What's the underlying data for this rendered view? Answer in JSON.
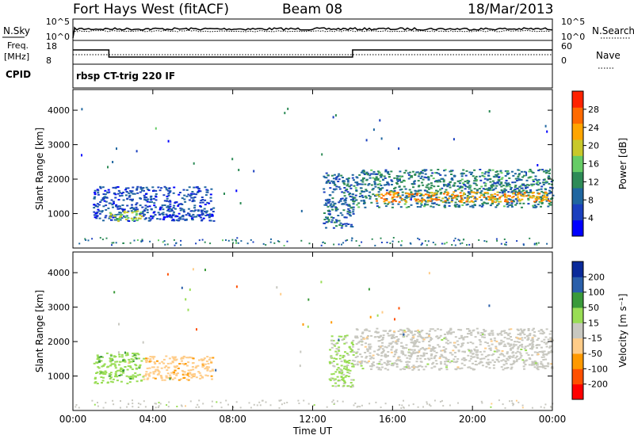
{
  "header": {
    "title": "Fort Hays West (fitACF)",
    "beam": "Beam 08",
    "date": "18/Mar/2013"
  },
  "summary": {
    "nsky_label": "N.Sky",
    "nsearch_label": "N.Search",
    "count_ticks": [
      "10^5",
      "10^0"
    ],
    "freq_label": "Freq.",
    "freq_unit": "[MHz]",
    "freq_ticks": [
      "18",
      "8"
    ],
    "nave_label": "Nave",
    "nave_ticks": [
      "60",
      "0"
    ],
    "cpid_label": "CPID",
    "cpid_value": "rbsp CT-trig 220 IF",
    "freq_steps_mhz": [
      [
        0,
        14.0
      ],
      [
        1.8,
        9.5
      ],
      [
        14.0,
        14.0
      ],
      [
        24,
        14.0
      ]
    ],
    "nave_steps": [
      [
        0,
        24
      ],
      [
        1.8,
        24
      ],
      [
        14.0,
        24
      ],
      [
        24,
        24
      ]
    ]
  },
  "chart_data": [
    {
      "type": "heatmap",
      "panel": "power",
      "ylabel": "Slant Range [km]",
      "y_ticks": [
        1000,
        2000,
        3000,
        4000
      ],
      "ylim": [
        0,
        4600
      ],
      "x_ticks": [
        "00:00",
        "04:00",
        "08:00",
        "12:00",
        "16:00",
        "20:00",
        "00:00"
      ],
      "xlim_hours": [
        0,
        24
      ],
      "colorbar": {
        "label": "Power [dB]",
        "ticks": [
          "28",
          "24",
          "20",
          "16",
          "12",
          "8",
          "4"
        ],
        "range": [
          0,
          30
        ],
        "colors": [
          "#0000ff",
          "#1a3fbf",
          "#1f66a0",
          "#2e8b57",
          "#66cc66",
          "#c8c82a",
          "#ffa500",
          "#ff6a00",
          "#ff2200"
        ]
      },
      "regions": [
        {
          "t0": 1.0,
          "t1": 7.0,
          "r0": 800,
          "r1": 1800,
          "level": 6
        },
        {
          "t0": 1.8,
          "t1": 3.5,
          "r0": 800,
          "r1": 1100,
          "level": 16
        },
        {
          "t0": 12.5,
          "t1": 14.0,
          "r0": 600,
          "r1": 2200,
          "level": 8
        },
        {
          "t0": 14.0,
          "t1": 24.0,
          "r0": 1200,
          "r1": 2300,
          "level": 10
        },
        {
          "t0": 15.0,
          "t1": 24.0,
          "r0": 1350,
          "r1": 1650,
          "level": 22
        }
      ]
    },
    {
      "type": "heatmap",
      "panel": "velocity",
      "ylabel": "Slant Range [km]",
      "y_ticks": [
        1000,
        2000,
        3000,
        4000
      ],
      "ylim": [
        0,
        4600
      ],
      "x_ticks": [
        "00:00",
        "04:00",
        "08:00",
        "12:00",
        "16:00",
        "20:00",
        "00:00"
      ],
      "xlim_hours": [
        0,
        24
      ],
      "xlabel": "Time UT",
      "colorbar": {
        "label": "Velocity [m s⁻¹]",
        "ticks": [
          "200",
          "100",
          "50",
          "15",
          "-15",
          "-50",
          "-100",
          "-200"
        ],
        "range": [
          -250,
          250
        ],
        "colors": [
          "#ff0000",
          "#ff5000",
          "#ff9900",
          "#ffcc88",
          "#c8c8c0",
          "#99dd55",
          "#3a9a3a",
          "#2a5faa",
          "#0a2a9a"
        ]
      },
      "regions": [
        {
          "t0": 1.0,
          "t1": 3.5,
          "r0": 800,
          "r1": 1700,
          "velocity": 60
        },
        {
          "t0": 3.5,
          "t1": 7.0,
          "r0": 900,
          "r1": 1600,
          "velocity": -60
        },
        {
          "t0": 12.8,
          "t1": 14.0,
          "r0": 700,
          "r1": 2200,
          "velocity": 40
        },
        {
          "t0": 14.0,
          "t1": 24.0,
          "r0": 1200,
          "r1": 2400,
          "velocity": 0
        }
      ]
    }
  ],
  "colors": {
    "accent": "#000000",
    "background": "#ffffff"
  }
}
